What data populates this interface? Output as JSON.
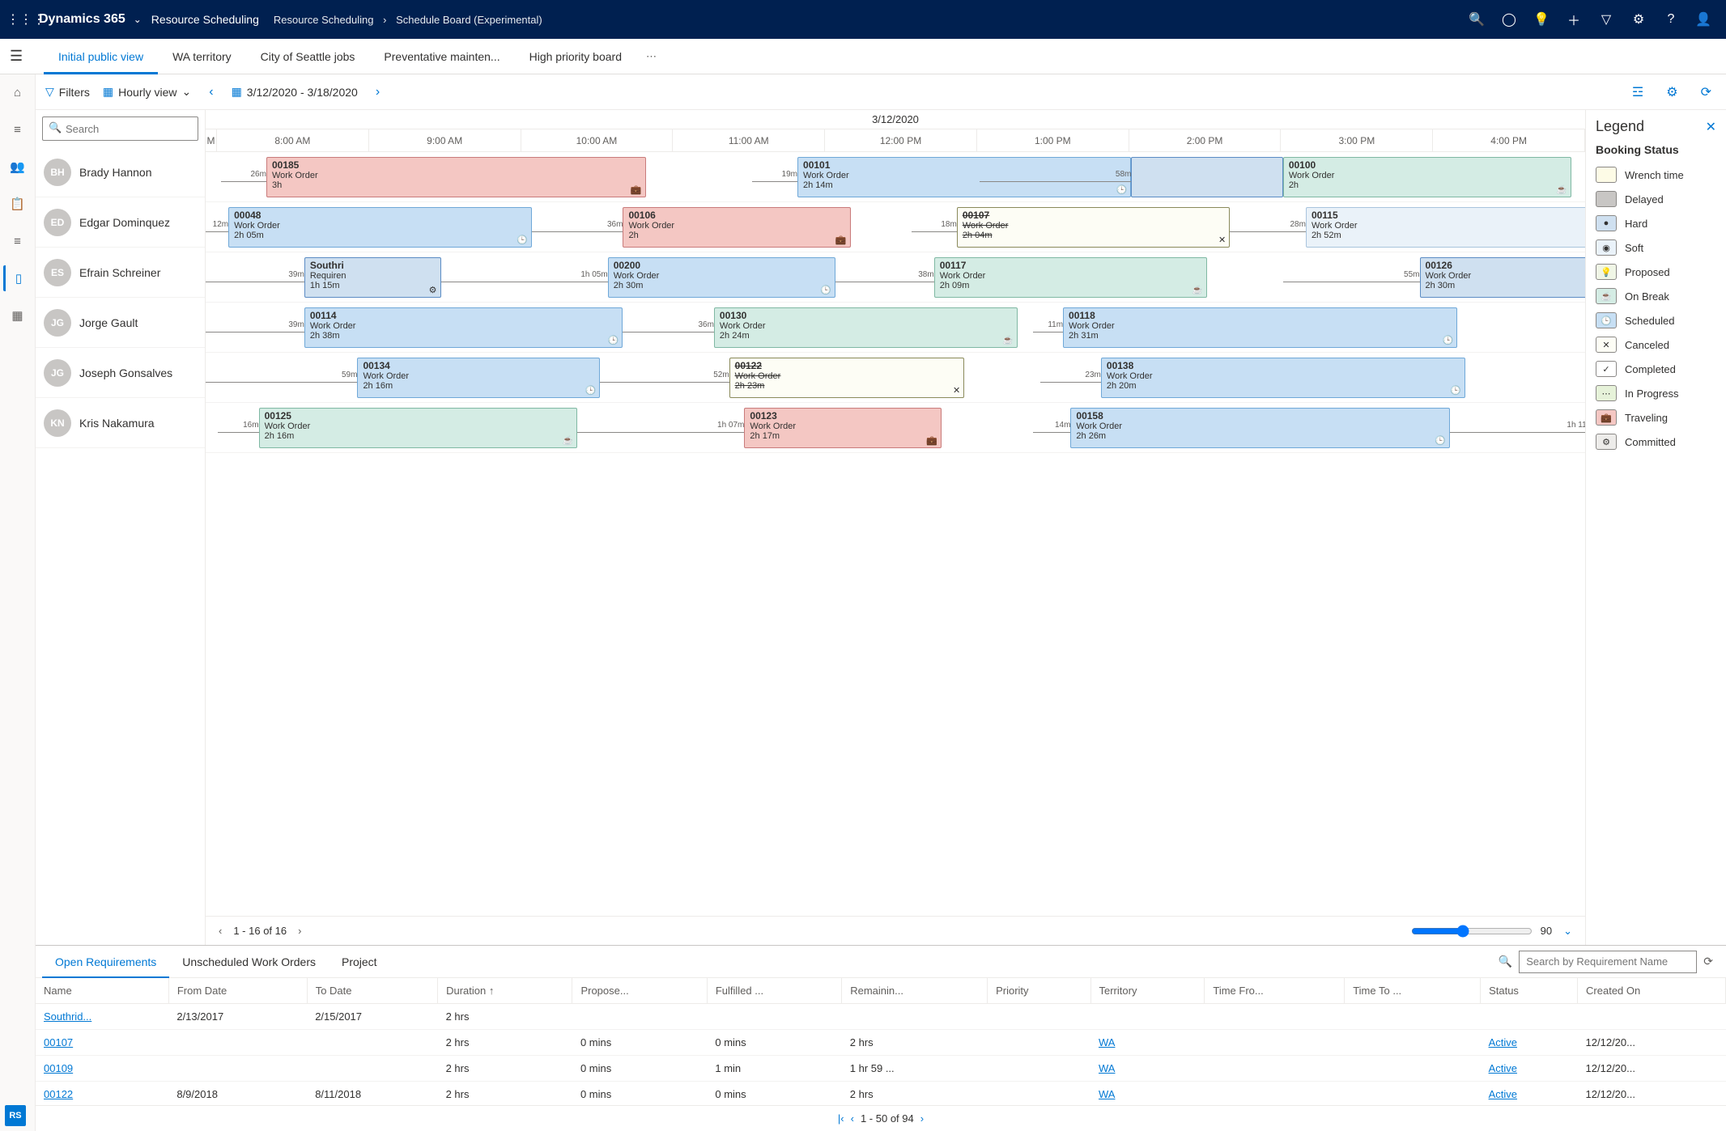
{
  "topbar": {
    "brand": "Dynamics 365",
    "area": "Resource Scheduling",
    "breadcrumb": [
      "Resource Scheduling",
      "Schedule Board (Experimental)"
    ]
  },
  "tabs": [
    "Initial public view",
    "WA territory",
    "City of Seattle jobs",
    "Preventative mainten...",
    "High priority board"
  ],
  "active_tab": 0,
  "toolbar": {
    "filters": "Filters",
    "view": "Hourly view",
    "daterange": "3/12/2020 - 3/18/2020"
  },
  "gantt": {
    "date": "3/12/2020",
    "hours": [
      "8:00 AM",
      "9:00 AM",
      "10:00 AM",
      "11:00 AM",
      "12:00 PM",
      "1:00 PM",
      "2:00 PM",
      "3:00 PM",
      "4:00 PM"
    ],
    "hour_width_pct": 11.0,
    "first_col_pct": 1.5
  },
  "resources": [
    {
      "name": "Brady Hannon",
      "av": "BH",
      "avcls": "av1"
    },
    {
      "name": "Edgar Dominquez",
      "av": "ED",
      "avcls": "av2"
    },
    {
      "name": "Efrain Schreiner",
      "av": "ES",
      "avcls": "av3"
    },
    {
      "name": "Jorge Gault",
      "av": "JG",
      "avcls": "av4"
    },
    {
      "name": "Joseph Gonsalves",
      "av": "JG",
      "avcls": "av5"
    },
    {
      "name": "Kris Nakamura",
      "av": "KN",
      "avcls": "av6"
    }
  ],
  "blocks": [
    {
      "row": 0,
      "num": "00185",
      "type": "Work Order",
      "dur": "3h",
      "start": 8.3,
      "len": 2.5,
      "status": "traveling",
      "icon": "💼",
      "travel_before": "26m",
      "tb_len": 0.3
    },
    {
      "row": 0,
      "num": "00101",
      "type": "Work Order",
      "dur": "2h 14m",
      "start": 11.8,
      "len": 2.2,
      "status": "scheduled",
      "icon": "🕒",
      "travel_before": "19m",
      "tb_len": 0.3
    },
    {
      "row": 0,
      "num": "",
      "type": "",
      "dur": "",
      "start": 14.0,
      "len": 1.0,
      "status": "hard",
      "icon": "",
      "travel_before": "58m",
      "tb_len": 1.0
    },
    {
      "row": 0,
      "num": "00100",
      "type": "Work Order",
      "dur": "2h",
      "start": 15.0,
      "len": 1.9,
      "status": "onbreak",
      "icon": "☕",
      "travel_before": "",
      "tb_len": 0
    },
    {
      "row": 1,
      "num": "00048",
      "type": "Work Order",
      "dur": "2h 05m",
      "start": 8.05,
      "len": 2.0,
      "status": "scheduled",
      "icon": "🕒",
      "travel_before": "12m",
      "tb_len": 0.15
    },
    {
      "row": 1,
      "num": "00106",
      "type": "Work Order",
      "dur": "2h",
      "start": 10.65,
      "len": 1.5,
      "status": "traveling",
      "icon": "💼",
      "travel_before": "36m",
      "tb_len": 0.6
    },
    {
      "row": 1,
      "num": "00107",
      "type": "Work Order",
      "dur": "2h 04m",
      "start": 12.85,
      "len": 1.8,
      "status": "canceled",
      "icon": "✕",
      "travel_before": "18m",
      "tb_len": 0.3
    },
    {
      "row": 1,
      "num": "00115",
      "type": "Work Order",
      "dur": "2h 52m",
      "start": 15.15,
      "len": 2.4,
      "status": "soft",
      "icon": "",
      "travel_before": "28m",
      "tb_len": 0.5
    },
    {
      "row": 2,
      "num": "Southri",
      "type": "Requiren",
      "dur": "1h 15m",
      "start": 8.55,
      "len": 0.9,
      "status": "hard",
      "icon": "⚙",
      "travel_before": "39m",
      "tb_len": 0.65
    },
    {
      "row": 2,
      "num": "00200",
      "type": "Work Order",
      "dur": "2h 30m",
      "start": 10.55,
      "len": 1.5,
      "status": "scheduled",
      "icon": "🕒",
      "travel_before": "1h 05m",
      "tb_len": 1.1
    },
    {
      "row": 2,
      "num": "00117",
      "type": "Work Order",
      "dur": "2h 09m",
      "start": 12.7,
      "len": 1.8,
      "status": "onbreak",
      "icon": "☕",
      "travel_before": "38m",
      "tb_len": 0.65
    },
    {
      "row": 2,
      "num": "00126",
      "type": "Work Order",
      "dur": "2h 30m",
      "start": 15.9,
      "len": 1.4,
      "status": "hard",
      "icon": "",
      "travel_before": "55m",
      "tb_len": 0.9
    },
    {
      "row": 3,
      "num": "00114",
      "type": "Work Order",
      "dur": "2h 38m",
      "start": 8.55,
      "len": 2.1,
      "status": "scheduled",
      "icon": "🕒",
      "travel_before": "39m",
      "tb_len": 0.65
    },
    {
      "row": 3,
      "num": "00130",
      "type": "Work Order",
      "dur": "2h 24m",
      "start": 11.25,
      "len": 2.0,
      "status": "onbreak",
      "icon": "☕",
      "travel_before": "36m",
      "tb_len": 0.6
    },
    {
      "row": 3,
      "num": "00118",
      "type": "Work Order",
      "dur": "2h 31m",
      "start": 13.55,
      "len": 2.6,
      "status": "scheduled",
      "icon": "🕒",
      "travel_before": "11m",
      "tb_len": 0.2
    },
    {
      "row": 4,
      "num": "00134",
      "type": "Work Order",
      "dur": "2h 16m",
      "start": 8.9,
      "len": 1.6,
      "status": "scheduled",
      "icon": "🕒",
      "travel_before": "59m",
      "tb_len": 1.0
    },
    {
      "row": 4,
      "num": "00122",
      "type": "Work Order",
      "dur": "2h 23m",
      "start": 11.35,
      "len": 1.55,
      "status": "canceled",
      "icon": "✕",
      "travel_before": "52m",
      "tb_len": 0.85
    },
    {
      "row": 4,
      "num": "00138",
      "type": "Work Order",
      "dur": "2h 20m",
      "start": 13.8,
      "len": 2.4,
      "status": "scheduled",
      "icon": "🕒",
      "travel_before": "23m",
      "tb_len": 0.4
    },
    {
      "row": 5,
      "num": "00125",
      "type": "Work Order",
      "dur": "2h 16m",
      "start": 8.25,
      "len": 2.1,
      "status": "onbreak",
      "icon": "☕",
      "travel_before": "16m",
      "tb_len": 0.27
    },
    {
      "row": 5,
      "num": "00123",
      "type": "Work Order",
      "dur": "2h 17m",
      "start": 11.45,
      "len": 1.3,
      "status": "traveling",
      "icon": "💼",
      "travel_before": "1h 07m",
      "tb_len": 1.1
    },
    {
      "row": 5,
      "num": "00158",
      "type": "Work Order",
      "dur": "2h 26m",
      "start": 13.6,
      "len": 2.5,
      "status": "scheduled",
      "icon": "🕒",
      "travel_before": "14m",
      "tb_len": 0.25
    },
    {
      "row": 5,
      "num": "",
      "type": "",
      "dur": "",
      "start": 17.0,
      "len": 0.2,
      "status": "none",
      "icon": "",
      "travel_before": "1h 11",
      "tb_len": 0.9
    }
  ],
  "legend": {
    "title": "Legend",
    "section": "Booking Status",
    "items": [
      {
        "label": "Wrench time",
        "color": "#fdfbe6",
        "icon": ""
      },
      {
        "label": "Delayed",
        "color": "#c8c6c4",
        "icon": ""
      },
      {
        "label": "Hard",
        "color": "#cfe0f0",
        "icon": "●"
      },
      {
        "label": "Soft",
        "color": "#eaf2f9",
        "icon": "◉"
      },
      {
        "label": "Proposed",
        "color": "#f0f6e6",
        "icon": "💡"
      },
      {
        "label": "On Break",
        "color": "#d4ece4",
        "icon": "☕"
      },
      {
        "label": "Scheduled",
        "color": "#c7dff4",
        "icon": "🕒"
      },
      {
        "label": "Canceled",
        "color": "#fdfdf5",
        "icon": "✕"
      },
      {
        "label": "Completed",
        "color": "#ffffff",
        "icon": "✓"
      },
      {
        "label": "In Progress",
        "color": "#e6f2d9",
        "icon": "⋯"
      },
      {
        "label": "Traveling",
        "color": "#f4c7c3",
        "icon": "💼"
      },
      {
        "label": "Committed",
        "color": "#edecea",
        "icon": "⚙"
      }
    ]
  },
  "pager": {
    "text": "1 - 16 of 16",
    "zoom": "90"
  },
  "bottom": {
    "tabs": [
      "Open Requirements",
      "Unscheduled Work Orders",
      "Project"
    ],
    "active": 0,
    "search_placeholder": "Search by Requirement Name",
    "columns": [
      "Name",
      "From Date",
      "To Date",
      "Duration ↑",
      "Propose...",
      "Fulfilled ...",
      "Remainin...",
      "Priority",
      "Territory",
      "Time Fro...",
      "Time To ...",
      "Status",
      "Created On"
    ],
    "rows": [
      {
        "name": "Southrid...",
        "from": "2/13/2017",
        "to": "2/15/2017",
        "dur": "2 hrs",
        "prop": "",
        "ful": "",
        "rem": "",
        "pri": "",
        "terr": "",
        "tf": "",
        "tt": "",
        "stat": "",
        "co": ""
      },
      {
        "name": "00107",
        "from": "",
        "to": "",
        "dur": "2 hrs",
        "prop": "0 mins",
        "ful": "0 mins",
        "rem": "2 hrs",
        "pri": "",
        "terr": "WA",
        "tf": "",
        "tt": "",
        "stat": "Active",
        "co": "12/12/20..."
      },
      {
        "name": "00109",
        "from": "",
        "to": "",
        "dur": "2 hrs",
        "prop": "0 mins",
        "ful": "1 min",
        "rem": "1 hr 59 ...",
        "pri": "",
        "terr": "WA",
        "tf": "",
        "tt": "",
        "stat": "Active",
        "co": "12/12/20..."
      },
      {
        "name": "00122",
        "from": "8/9/2018",
        "to": "8/11/2018",
        "dur": "2 hrs",
        "prop": "0 mins",
        "ful": "0 mins",
        "rem": "2 hrs",
        "pri": "",
        "terr": "WA",
        "tf": "",
        "tt": "",
        "stat": "Active",
        "co": "12/12/20..."
      }
    ],
    "pager": "1 - 50 of 94"
  },
  "rsbadge": "RS",
  "search_placeholder": "Search"
}
